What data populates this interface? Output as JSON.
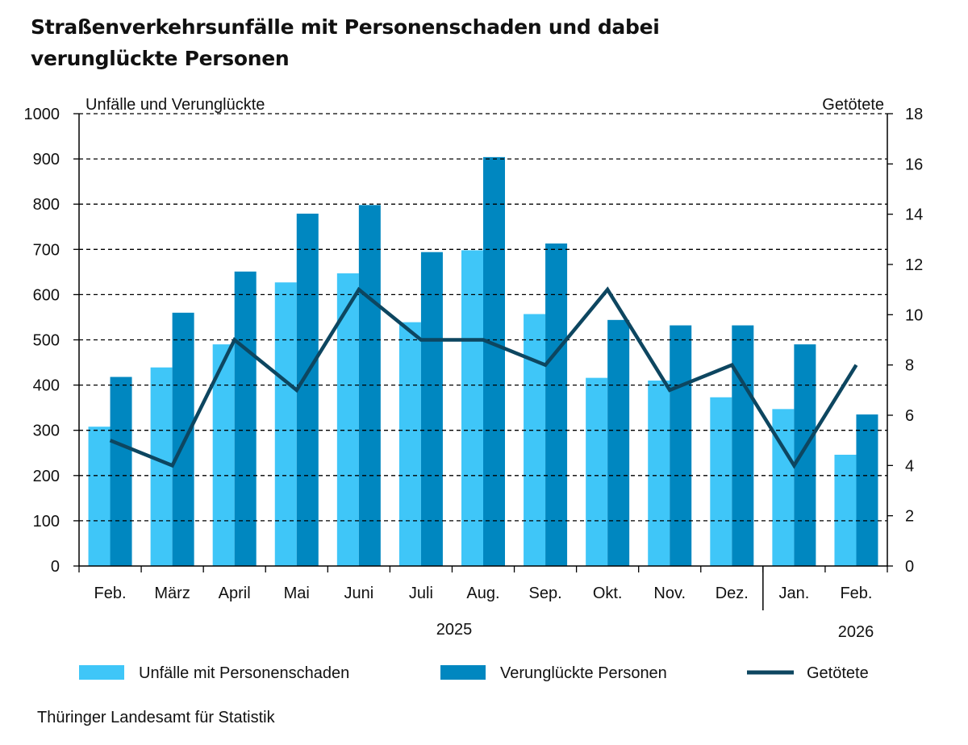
{
  "chart_title": [
    "Straßenverkehrsunfälle mit Personenschaden und dabei",
    "verunglückte Personen"
  ],
  "source": "Thüringer Landesamt für Statistik",
  "colors": {
    "unfaelle": "#3fc6f8",
    "verunglueckte": "#0087c0",
    "getoetete": "#0d4660",
    "grid": "#000000"
  },
  "chart_data": {
    "type": "bar",
    "title": "Straßenverkehrsunfälle mit Personenschaden und dabei verunglückte Personen",
    "ylabel": "Unfälle und Verunglückte",
    "y2label": "Getötete",
    "ylim": [
      0,
      1000
    ],
    "y2lim": [
      0,
      18
    ],
    "yticks": [
      "0",
      "100",
      "200",
      "300",
      "400",
      "500",
      "600",
      "700",
      "800",
      "900",
      "1000"
    ],
    "y2ticks": [
      "0",
      "2",
      "4",
      "6",
      "8",
      "10",
      "12",
      "14",
      "16",
      "18"
    ],
    "categories": [
      "Feb.",
      "März",
      "April",
      "Mai",
      "Juni",
      "Juli",
      "Aug.",
      "Sep.",
      "Okt.",
      "Nov.",
      "Dez.",
      "Jan.",
      "Feb."
    ],
    "year_labels": [
      "2025",
      "2026"
    ],
    "grid": true,
    "legend_position": "bottom",
    "series": [
      {
        "name": "Unfälle mit Personenschaden",
        "kind": "bar",
        "axis": "left",
        "values": [
          308,
          439,
          490,
          627,
          647,
          539,
          698,
          557,
          416,
          410,
          373,
          347,
          246
        ]
      },
      {
        "name": "Verunglückte Personen",
        "kind": "bar",
        "axis": "left",
        "values": [
          418,
          560,
          651,
          779,
          798,
          694,
          904,
          713,
          544,
          532,
          532,
          490,
          335
        ]
      },
      {
        "name": "Getötete",
        "kind": "line",
        "axis": "right",
        "values": [
          5,
          4,
          9,
          7,
          11,
          9,
          9,
          8,
          11,
          7,
          8,
          4,
          8
        ]
      }
    ]
  }
}
